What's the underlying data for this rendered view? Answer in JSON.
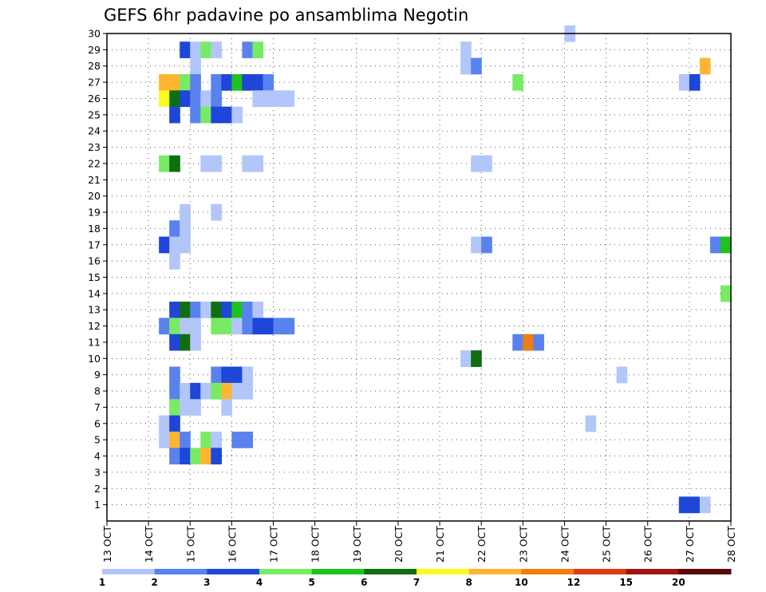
{
  "chart_data": {
    "type": "heatmap",
    "title": "GEFS 6hr padavine po ansamblima Negotin",
    "xlabel": "",
    "ylabel": "",
    "x_tick_labels": [
      "13 OCT",
      "14 OCT",
      "15 OCT",
      "16 OCT",
      "17 OCT",
      "18 OCT",
      "19 OCT",
      "20 OCT",
      "21 OCT",
      "22 OCT",
      "23 OCT",
      "24 OCT",
      "25 OCT",
      "26 OCT",
      "27 OCT",
      "28 OCT"
    ],
    "x_range_days": [
      13,
      28
    ],
    "x_step_hours": 6,
    "y_tick_labels": [
      1,
      2,
      3,
      4,
      5,
      6,
      7,
      8,
      9,
      10,
      11,
      12,
      13,
      14,
      15,
      16,
      17,
      18,
      19,
      20,
      21,
      22,
      23,
      24,
      25,
      26,
      27,
      28,
      29,
      30
    ],
    "y_range": [
      0,
      30
    ],
    "grid": true,
    "grid_style": "dotted",
    "colorbar": {
      "placement": "bottom",
      "labels": [
        "1",
        "2",
        "3",
        "4",
        "5",
        "6",
        "7",
        "8",
        "10",
        "12",
        "15",
        "20"
      ],
      "colors": [
        "#b3c6fa",
        "#5a82ef",
        "#1e46d8",
        "#78eb64",
        "#1ec31e",
        "#0f6e0f",
        "#fafa1e",
        "#ffb432",
        "#f07d0f",
        "#dc3c0f",
        "#a01414",
        "#5a0a0a"
      ]
    },
    "cells_format": "[member, day_of_october_start, bin_index (1..12)]",
    "cells": [
      [
        30,
        24.0,
        1
      ],
      [
        29,
        14.75,
        3
      ],
      [
        29,
        15.0,
        1
      ],
      [
        29,
        15.25,
        4
      ],
      [
        29,
        15.5,
        1
      ],
      [
        29,
        16.25,
        2
      ],
      [
        29,
        16.5,
        4
      ],
      [
        29,
        21.5,
        1
      ],
      [
        28,
        15.0,
        1
      ],
      [
        28,
        21.5,
        1
      ],
      [
        28,
        21.75,
        2
      ],
      [
        28,
        27.25,
        8
      ],
      [
        27,
        14.25,
        8
      ],
      [
        27,
        14.5,
        8
      ],
      [
        27,
        14.75,
        4
      ],
      [
        27,
        15.0,
        2
      ],
      [
        27,
        15.5,
        2
      ],
      [
        27,
        15.75,
        3
      ],
      [
        27,
        16.0,
        5
      ],
      [
        27,
        16.25,
        3
      ],
      [
        27,
        16.5,
        3
      ],
      [
        27,
        16.75,
        2
      ],
      [
        27,
        22.75,
        4
      ],
      [
        27,
        26.75,
        1
      ],
      [
        27,
        27.0,
        3
      ],
      [
        26,
        14.25,
        7
      ],
      [
        26,
        14.5,
        6
      ],
      [
        26,
        14.75,
        3
      ],
      [
        26,
        15.0,
        2
      ],
      [
        26,
        15.25,
        1
      ],
      [
        26,
        15.5,
        2
      ],
      [
        26,
        16.5,
        1
      ],
      [
        26,
        16.75,
        1
      ],
      [
        26,
        17.0,
        1
      ],
      [
        26,
        17.25,
        1
      ],
      [
        25,
        14.5,
        3
      ],
      [
        25,
        15.0,
        2
      ],
      [
        25,
        15.25,
        4
      ],
      [
        25,
        15.5,
        3
      ],
      [
        25,
        15.75,
        3
      ],
      [
        25,
        16.0,
        1
      ],
      [
        22,
        14.25,
        4
      ],
      [
        22,
        14.5,
        6
      ],
      [
        22,
        15.25,
        1
      ],
      [
        22,
        15.5,
        1
      ],
      [
        22,
        16.25,
        1
      ],
      [
        22,
        16.5,
        1
      ],
      [
        22,
        21.75,
        1
      ],
      [
        22,
        22.0,
        1
      ],
      [
        19,
        14.75,
        1
      ],
      [
        19,
        15.5,
        1
      ],
      [
        18,
        14.5,
        2
      ],
      [
        18,
        14.75,
        1
      ],
      [
        17,
        14.25,
        3
      ],
      [
        17,
        14.5,
        1
      ],
      [
        17,
        14.75,
        1
      ],
      [
        17,
        21.75,
        1
      ],
      [
        17,
        22.0,
        2
      ],
      [
        17,
        27.5,
        2
      ],
      [
        17,
        27.75,
        5
      ],
      [
        16,
        14.5,
        1
      ],
      [
        14,
        27.75,
        4
      ],
      [
        13,
        14.5,
        3
      ],
      [
        13,
        14.75,
        6
      ],
      [
        13,
        15.0,
        2
      ],
      [
        13,
        15.25,
        1
      ],
      [
        13,
        15.5,
        6
      ],
      [
        13,
        15.75,
        3
      ],
      [
        13,
        16.0,
        5
      ],
      [
        13,
        16.25,
        2
      ],
      [
        13,
        16.5,
        1
      ],
      [
        12,
        14.25,
        2
      ],
      [
        12,
        14.5,
        4
      ],
      [
        12,
        14.75,
        1
      ],
      [
        12,
        15.0,
        1
      ],
      [
        12,
        15.5,
        4
      ],
      [
        12,
        15.75,
        4
      ],
      [
        12,
        16.0,
        1
      ],
      [
        12,
        16.25,
        2
      ],
      [
        12,
        16.5,
        3
      ],
      [
        12,
        16.75,
        3
      ],
      [
        12,
        17.0,
        2
      ],
      [
        12,
        17.25,
        2
      ],
      [
        11,
        14.5,
        3
      ],
      [
        11,
        14.75,
        6
      ],
      [
        11,
        15.0,
        1
      ],
      [
        11,
        22.75,
        2
      ],
      [
        11,
        23.0,
        9
      ],
      [
        11,
        23.25,
        2
      ],
      [
        10,
        21.5,
        1
      ],
      [
        10,
        21.75,
        6
      ],
      [
        9,
        14.5,
        2
      ],
      [
        9,
        15.5,
        2
      ],
      [
        9,
        15.75,
        3
      ],
      [
        9,
        16.0,
        3
      ],
      [
        9,
        16.25,
        1
      ],
      [
        9,
        25.25,
        1
      ],
      [
        8,
        14.5,
        2
      ],
      [
        8,
        14.75,
        1
      ],
      [
        8,
        15.0,
        3
      ],
      [
        8,
        15.25,
        1
      ],
      [
        8,
        15.5,
        4
      ],
      [
        8,
        15.75,
        8
      ],
      [
        8,
        16.0,
        1
      ],
      [
        8,
        16.25,
        1
      ],
      [
        7,
        14.5,
        4
      ],
      [
        7,
        14.75,
        1
      ],
      [
        7,
        15.0,
        1
      ],
      [
        7,
        15.75,
        1
      ],
      [
        6,
        14.25,
        1
      ],
      [
        6,
        14.5,
        3
      ],
      [
        6,
        24.5,
        1
      ],
      [
        5,
        14.25,
        1
      ],
      [
        5,
        14.5,
        8
      ],
      [
        5,
        14.75,
        2
      ],
      [
        5,
        15.25,
        4
      ],
      [
        5,
        15.5,
        1
      ],
      [
        5,
        16.0,
        2
      ],
      [
        5,
        16.25,
        2
      ],
      [
        4,
        14.5,
        2
      ],
      [
        4,
        14.75,
        3
      ],
      [
        4,
        15.0,
        4
      ],
      [
        4,
        15.25,
        8
      ],
      [
        4,
        15.5,
        3
      ],
      [
        1,
        26.75,
        3
      ],
      [
        1,
        27.0,
        3
      ],
      [
        1,
        27.25,
        1
      ]
    ]
  }
}
